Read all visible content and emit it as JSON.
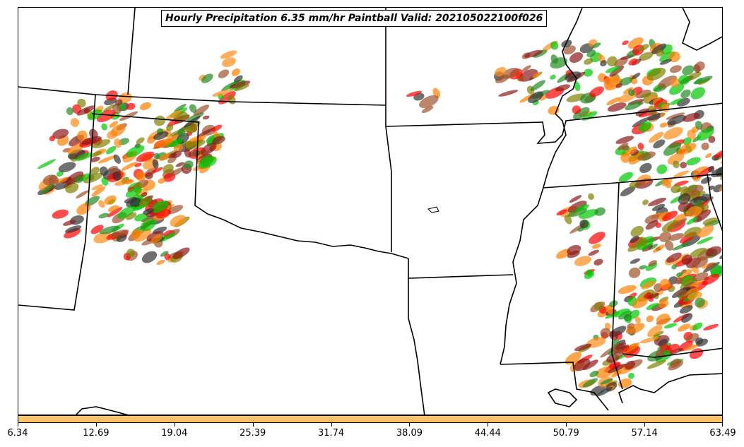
{
  "title": "Hourly Precipitation 6.35 mm/hr Paintball Valid: 202105022100f026",
  "colorbar": {
    "color": "#ffc266",
    "ticks": [
      "6.34",
      "12.69",
      "19.04",
      "25.39",
      "31.74",
      "38.09",
      "44.44",
      "50.79",
      "57.14",
      "63.49"
    ]
  },
  "map": {
    "background": "#ffffff",
    "border_color": "#000000",
    "member_colors": [
      "#ff0000",
      "#ff7f00",
      "#8b1a1a",
      "#808000",
      "#00c800",
      "#228b22",
      "#333333",
      "#ff8c1a",
      "#a0522d"
    ]
  }
}
